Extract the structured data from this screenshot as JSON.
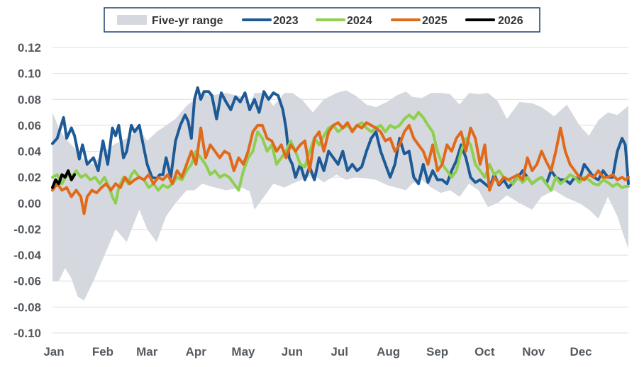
{
  "chart_data": {
    "type": "line",
    "title": "",
    "xlabel": "",
    "ylabel": "",
    "ylim": [
      -0.1,
      0.12
    ],
    "y_ticks": [
      "0.12",
      "0.10",
      "0.08",
      "0.06",
      "0.04",
      "0.02",
      "0.00",
      "-0.02",
      "-0.04",
      "-0.06",
      "-0.08",
      "-0.10"
    ],
    "y_tick_values": [
      0.12,
      0.1,
      0.08,
      0.06,
      0.04,
      0.02,
      0.0,
      -0.02,
      -0.04,
      -0.06,
      -0.08,
      -0.1
    ],
    "x_range": [
      0,
      365
    ],
    "month_labels": [
      "Jan",
      "Feb",
      "Mar",
      "Apr",
      "May",
      "Jun",
      "Jul",
      "Aug",
      "Sep",
      "Oct",
      "Nov",
      "Dec"
    ],
    "month_starts": [
      0,
      31,
      59,
      90,
      120,
      151,
      181,
      212,
      243,
      273,
      304,
      334
    ],
    "gridlines": true,
    "legend_position": "top-center",
    "legend": [
      {
        "label": "Five-yr range",
        "color": "#d5d9df",
        "kind": "area"
      },
      {
        "label": "2023",
        "color": "#1d5a96",
        "kind": "line"
      },
      {
        "label": "2024",
        "color": "#8fcf4f",
        "kind": "line"
      },
      {
        "label": "2025",
        "color": "#e06a1c",
        "kind": "line"
      },
      {
        "label": "2026",
        "color": "#000000",
        "kind": "line"
      }
    ],
    "range_band": {
      "name": "Five-yr range",
      "color": "#d5d9df",
      "x": [
        0,
        4,
        8,
        12,
        16,
        20,
        26,
        33,
        40,
        47,
        55,
        60,
        66,
        72,
        78,
        85,
        90,
        95,
        100,
        110,
        120,
        125,
        128,
        134,
        140,
        147,
        152,
        158,
        165,
        172,
        180,
        186,
        192,
        199,
        205,
        212,
        218,
        224,
        228,
        234,
        240,
        246,
        252,
        258,
        264,
        270,
        276,
        282,
        288,
        296,
        304,
        310,
        318,
        326,
        334,
        340,
        346,
        352,
        358,
        362,
        365
      ],
      "upper": [
        0.07,
        0.058,
        0.05,
        0.045,
        0.04,
        0.033,
        0.03,
        0.04,
        0.046,
        0.05,
        0.057,
        0.048,
        0.055,
        0.06,
        0.065,
        0.075,
        0.08,
        0.085,
        0.083,
        0.085,
        0.082,
        0.075,
        0.085,
        0.085,
        0.075,
        0.085,
        0.085,
        0.08,
        0.07,
        0.08,
        0.085,
        0.087,
        0.083,
        0.076,
        0.074,
        0.078,
        0.083,
        0.086,
        0.082,
        0.081,
        0.085,
        0.085,
        0.084,
        0.076,
        0.085,
        0.084,
        0.085,
        0.079,
        0.065,
        0.078,
        0.077,
        0.074,
        0.067,
        0.076,
        0.06,
        0.052,
        0.064,
        0.07,
        0.068,
        0.072,
        0.075
      ],
      "lower": [
        -0.06,
        -0.06,
        -0.05,
        -0.058,
        -0.072,
        -0.075,
        -0.06,
        -0.04,
        -0.02,
        -0.03,
        -0.005,
        -0.02,
        -0.03,
        -0.01,
        0.0,
        0.01,
        0.01,
        0.015,
        0.013,
        0.01,
        0.012,
        0.009,
        -0.005,
        0.005,
        0.015,
        0.012,
        0.015,
        0.018,
        0.022,
        0.016,
        0.022,
        0.018,
        0.02,
        0.019,
        0.018,
        0.014,
        0.012,
        0.01,
        0.015,
        0.018,
        0.012,
        0.008,
        0.01,
        0.005,
        0.015,
        0.01,
        -0.003,
        0.0,
        0.006,
        0.0,
        -0.005,
        0.005,
        0.01,
        0.004,
        0.0,
        -0.005,
        -0.012,
        0.005,
        -0.01,
        -0.025,
        -0.035
      ]
    },
    "series": [
      {
        "name": "2023",
        "color": "#1d5a96",
        "x": [
          0,
          3,
          5,
          7,
          9,
          12,
          14,
          17,
          19,
          22,
          26,
          29,
          32,
          35,
          38,
          40,
          42,
          45,
          47,
          50,
          52,
          55,
          58,
          60,
          63,
          66,
          68,
          70,
          72,
          75,
          78,
          81,
          84,
          86,
          88,
          90,
          92,
          94,
          96,
          99,
          101,
          104,
          107,
          110,
          113,
          116,
          119,
          122,
          125,
          128,
          131,
          134,
          137,
          140,
          143,
          146,
          148,
          150,
          152,
          154,
          157,
          160,
          163,
          166,
          169,
          172,
          175,
          178,
          181,
          184,
          187,
          190,
          193,
          196,
          199,
          202,
          205,
          208,
          211,
          214,
          217,
          220,
          223,
          226,
          229,
          232,
          235,
          238,
          241,
          244,
          247,
          250,
          253,
          256,
          259,
          262,
          265,
          268,
          271,
          274,
          277,
          280,
          283,
          286,
          289,
          292,
          295,
          298,
          301,
          304,
          307,
          310,
          313,
          316,
          319,
          322,
          325,
          328,
          331,
          334,
          337,
          340,
          343,
          346,
          349,
          352,
          355,
          358,
          361,
          363,
          365
        ],
        "y": [
          0.046,
          0.05,
          0.058,
          0.066,
          0.05,
          0.058,
          0.052,
          0.034,
          0.045,
          0.03,
          0.035,
          0.025,
          0.048,
          0.03,
          0.058,
          0.052,
          0.06,
          0.035,
          0.04,
          0.06,
          0.055,
          0.06,
          0.042,
          0.03,
          0.02,
          0.019,
          0.022,
          0.022,
          0.035,
          0.02,
          0.048,
          0.06,
          0.068,
          0.063,
          0.05,
          0.08,
          0.089,
          0.08,
          0.086,
          0.086,
          0.083,
          0.065,
          0.085,
          0.078,
          0.072,
          0.082,
          0.078,
          0.085,
          0.072,
          0.08,
          0.07,
          0.086,
          0.08,
          0.085,
          0.083,
          0.072,
          0.058,
          0.035,
          0.03,
          0.02,
          0.03,
          0.018,
          0.028,
          0.018,
          0.035,
          0.025,
          0.04,
          0.035,
          0.03,
          0.04,
          0.025,
          0.03,
          0.025,
          0.028,
          0.04,
          0.05,
          0.055,
          0.04,
          0.03,
          0.02,
          0.03,
          0.05,
          0.038,
          0.04,
          0.02,
          0.015,
          0.03,
          0.016,
          0.025,
          0.018,
          0.018,
          0.015,
          0.025,
          0.033,
          0.045,
          0.035,
          0.02,
          0.016,
          0.018,
          0.015,
          0.012,
          0.022,
          0.014,
          0.018,
          0.012,
          0.016,
          0.02,
          0.025,
          0.02,
          0.015,
          0.018,
          0.02,
          0.015,
          0.025,
          0.02,
          0.018,
          0.018,
          0.015,
          0.02,
          0.018,
          0.03,
          0.025,
          0.02,
          0.018,
          0.025,
          0.02,
          0.02,
          0.04,
          0.05,
          0.045,
          0.015
        ]
      },
      {
        "name": "2024",
        "color": "#8fcf4f",
        "x": [
          0,
          3,
          6,
          9,
          12,
          15,
          18,
          21,
          24,
          27,
          30,
          33,
          36,
          38,
          40,
          42,
          45,
          48,
          50,
          52,
          55,
          58,
          61,
          64,
          67,
          70,
          73,
          76,
          79,
          82,
          85,
          88,
          91,
          94,
          97,
          100,
          103,
          106,
          109,
          112,
          115,
          118,
          121,
          124,
          127,
          130,
          133,
          136,
          139,
          142,
          145,
          148,
          151,
          154,
          157,
          160,
          163,
          166,
          169,
          172,
          175,
          178,
          181,
          184,
          187,
          190,
          193,
          196,
          199,
          202,
          205,
          208,
          211,
          214,
          217,
          220,
          223,
          226,
          229,
          232,
          235,
          238,
          241,
          244,
          247,
          250,
          253,
          256,
          259,
          262,
          265,
          268,
          271,
          274,
          277,
          280,
          283,
          286,
          289,
          292,
          295,
          298,
          301,
          304,
          307,
          310,
          313,
          316,
          319,
          322,
          325,
          328,
          331,
          334,
          337,
          340,
          343,
          346,
          349,
          352,
          355,
          358,
          361,
          363,
          365
        ],
        "y": [
          0.02,
          0.022,
          0.015,
          0.022,
          0.02,
          0.025,
          0.02,
          0.022,
          0.018,
          0.02,
          0.015,
          0.02,
          0.012,
          0.005,
          0.0,
          0.012,
          0.02,
          0.015,
          0.022,
          0.025,
          0.02,
          0.018,
          0.012,
          0.015,
          0.01,
          0.014,
          0.012,
          0.015,
          0.02,
          0.018,
          0.025,
          0.03,
          0.04,
          0.035,
          0.03,
          0.022,
          0.025,
          0.02,
          0.022,
          0.02,
          0.015,
          0.01,
          0.025,
          0.035,
          0.04,
          0.055,
          0.05,
          0.04,
          0.045,
          0.03,
          0.035,
          0.04,
          0.048,
          0.04,
          0.03,
          0.028,
          0.04,
          0.05,
          0.045,
          0.052,
          0.058,
          0.06,
          0.055,
          0.058,
          0.06,
          0.056,
          0.06,
          0.062,
          0.058,
          0.055,
          0.058,
          0.06,
          0.055,
          0.06,
          0.058,
          0.06,
          0.065,
          0.068,
          0.065,
          0.07,
          0.066,
          0.06,
          0.055,
          0.04,
          0.03,
          0.025,
          0.02,
          0.025,
          0.04,
          0.05,
          0.045,
          0.03,
          0.025,
          0.02,
          0.03,
          0.022,
          0.025,
          0.02,
          0.018,
          0.015,
          0.02,
          0.016,
          0.02,
          0.015,
          0.018,
          0.02,
          0.015,
          0.01,
          0.02,
          0.015,
          0.018,
          0.022,
          0.02,
          0.016,
          0.02,
          0.018,
          0.015,
          0.014,
          0.018,
          0.016,
          0.013,
          0.015,
          0.012,
          0.013,
          0.013
        ]
      },
      {
        "name": "2025",
        "color": "#e06a1c",
        "x": [
          0,
          3,
          6,
          9,
          12,
          15,
          18,
          20,
          22,
          25,
          28,
          31,
          34,
          37,
          40,
          43,
          46,
          49,
          52,
          55,
          58,
          61,
          64,
          67,
          70,
          73,
          76,
          79,
          82,
          85,
          88,
          91,
          94,
          97,
          100,
          103,
          106,
          109,
          112,
          115,
          118,
          121,
          124,
          127,
          130,
          133,
          136,
          139,
          142,
          145,
          148,
          151,
          154,
          157,
          160,
          163,
          166,
          169,
          172,
          175,
          178,
          181,
          184,
          187,
          190,
          193,
          196,
          199,
          202,
          205,
          208,
          211,
          214,
          217,
          220,
          223,
          226,
          229,
          232,
          235,
          238,
          241,
          244,
          247,
          250,
          253,
          256,
          259,
          262,
          265,
          268,
          271,
          274,
          277,
          280,
          283,
          286,
          289,
          292,
          295,
          298,
          301,
          304,
          307,
          310,
          313,
          316,
          319,
          322,
          325,
          328,
          331,
          334,
          337,
          340,
          343,
          346,
          349,
          352,
          355,
          358,
          361,
          363,
          365
        ],
        "y": [
          0.01,
          0.015,
          0.01,
          0.012,
          0.005,
          0.01,
          0.005,
          -0.008,
          0.005,
          0.01,
          0.008,
          0.012,
          0.015,
          0.01,
          0.015,
          0.012,
          0.02,
          0.015,
          0.018,
          0.02,
          0.018,
          0.022,
          0.015,
          0.02,
          0.018,
          0.022,
          0.015,
          0.025,
          0.02,
          0.03,
          0.04,
          0.03,
          0.058,
          0.035,
          0.045,
          0.04,
          0.035,
          0.04,
          0.038,
          0.025,
          0.035,
          0.03,
          0.04,
          0.055,
          0.06,
          0.06,
          0.05,
          0.048,
          0.04,
          0.045,
          0.035,
          0.045,
          0.04,
          0.045,
          0.048,
          0.025,
          0.05,
          0.055,
          0.04,
          0.055,
          0.06,
          0.062,
          0.058,
          0.062,
          0.055,
          0.06,
          0.058,
          0.062,
          0.06,
          0.058,
          0.055,
          0.048,
          0.05,
          0.04,
          0.045,
          0.055,
          0.06,
          0.05,
          0.045,
          0.04,
          0.03,
          0.045,
          0.025,
          0.03,
          0.045,
          0.04,
          0.05,
          0.055,
          0.04,
          0.058,
          0.05,
          0.03,
          0.045,
          0.01,
          0.02,
          0.015,
          0.02,
          0.018,
          0.02,
          0.022,
          0.018,
          0.035,
          0.025,
          0.03,
          0.04,
          0.032,
          0.025,
          0.04,
          0.058,
          0.04,
          0.03,
          0.025,
          0.02,
          0.018,
          0.022,
          0.02,
          0.025,
          0.02,
          0.02,
          0.022,
          0.018,
          0.02,
          0.018,
          0.02
        ]
      },
      {
        "name": "2026",
        "color": "#000000",
        "x": [
          0,
          2,
          4,
          6,
          8,
          10,
          12,
          14
        ],
        "y": [
          0.012,
          0.018,
          0.015,
          0.022,
          0.02,
          0.025,
          0.018,
          0.022
        ]
      }
    ]
  }
}
